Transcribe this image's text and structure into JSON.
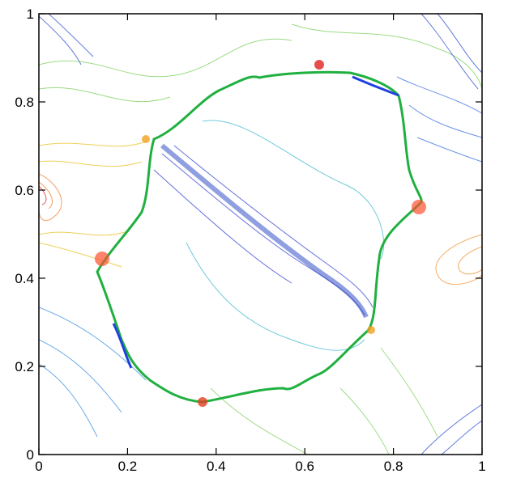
{
  "chart_data": {
    "type": "contour",
    "xlim": [
      0,
      1
    ],
    "ylim": [
      0,
      1
    ],
    "xticks": [
      0,
      0.2,
      0.4,
      0.6,
      0.8,
      1
    ],
    "yticks": [
      0,
      0.2,
      0.4,
      0.6,
      0.8,
      1
    ]
  }
}
